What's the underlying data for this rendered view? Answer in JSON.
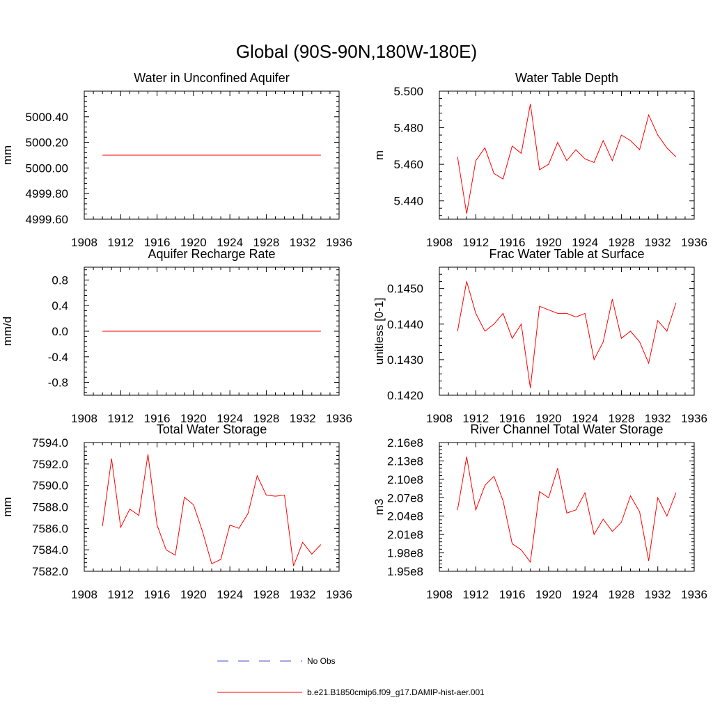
{
  "main_title": "Global (90S-90N,180W-180E)",
  "colors": {
    "series": "#ff0000",
    "obs": "#4b4bc8",
    "axis": "#000000"
  },
  "legend": [
    {
      "label": "No Obs",
      "style": "dashed",
      "color": "#4b4bc8"
    },
    {
      "label": "b.e21.B1850cmip6.f09_g17.DAMIP-hist-aer.001",
      "style": "solid",
      "color": "#ff0000"
    }
  ],
  "chart_data": [
    {
      "type": "line",
      "title": "Water in Unconfined Aquifer",
      "ylabel": "mm",
      "xlim": [
        1908,
        1936
      ],
      "ylim": [
        4999.6,
        5000.6
      ],
      "xticks": [
        1908,
        1912,
        1916,
        1920,
        1924,
        1928,
        1932,
        1936
      ],
      "yticks": [
        4999.6,
        4999.8,
        5000.0,
        5000.2,
        5000.4
      ],
      "ytick_labels": [
        "4999.60",
        "4999.80",
        "5000.00",
        "5000.20",
        "5000.40"
      ],
      "x": [
        1910,
        1911,
        1912,
        1913,
        1914,
        1915,
        1916,
        1917,
        1918,
        1919,
        1920,
        1921,
        1922,
        1923,
        1924,
        1925,
        1926,
        1927,
        1928,
        1929,
        1930,
        1931,
        1932,
        1933,
        1934
      ],
      "values": [
        5000.1,
        5000.1,
        5000.1,
        5000.1,
        5000.1,
        5000.1,
        5000.1,
        5000.1,
        5000.1,
        5000.1,
        5000.1,
        5000.1,
        5000.1,
        5000.1,
        5000.1,
        5000.1,
        5000.1,
        5000.1,
        5000.1,
        5000.1,
        5000.1,
        5000.1,
        5000.1,
        5000.1,
        5000.1
      ]
    },
    {
      "type": "line",
      "title": "Water Table Depth",
      "ylabel": "m",
      "xlim": [
        1908,
        1936
      ],
      "ylim": [
        5.43,
        5.5
      ],
      "xticks": [
        1908,
        1912,
        1916,
        1920,
        1924,
        1928,
        1932,
        1936
      ],
      "yticks": [
        5.44,
        5.46,
        5.48,
        5.5
      ],
      "ytick_labels": [
        "5.440",
        "5.460",
        "5.480",
        "5.500"
      ],
      "x": [
        1910,
        1911,
        1912,
        1913,
        1914,
        1915,
        1916,
        1917,
        1918,
        1919,
        1920,
        1921,
        1922,
        1923,
        1924,
        1925,
        1926,
        1927,
        1928,
        1929,
        1930,
        1931,
        1932,
        1933,
        1934
      ],
      "values": [
        5.464,
        5.433,
        5.462,
        5.469,
        5.455,
        5.452,
        5.47,
        5.466,
        5.493,
        5.457,
        5.46,
        5.472,
        5.462,
        5.468,
        5.463,
        5.461,
        5.473,
        5.462,
        5.476,
        5.473,
        5.468,
        5.487,
        5.476,
        5.469,
        5.464
      ]
    },
    {
      "type": "line",
      "title": "Aquifer Recharge Rate",
      "ylabel": "mm/d",
      "xlim": [
        1908,
        1936
      ],
      "ylim": [
        -1.0,
        1.0
      ],
      "xticks": [
        1908,
        1912,
        1916,
        1920,
        1924,
        1928,
        1932,
        1936
      ],
      "yticks": [
        -0.8,
        -0.4,
        0.0,
        0.4,
        0.8
      ],
      "ytick_labels": [
        "-0.8",
        "-0.4",
        "0.0",
        "0.4",
        "0.8"
      ],
      "x": [
        1910,
        1911,
        1912,
        1913,
        1914,
        1915,
        1916,
        1917,
        1918,
        1919,
        1920,
        1921,
        1922,
        1923,
        1924,
        1925,
        1926,
        1927,
        1928,
        1929,
        1930,
        1931,
        1932,
        1933,
        1934
      ],
      "values": [
        0,
        0,
        0,
        0,
        0,
        0,
        0,
        0,
        0,
        0,
        0,
        0,
        0,
        0,
        0,
        0,
        0,
        0,
        0,
        0,
        0,
        0,
        0,
        0,
        0
      ]
    },
    {
      "type": "line",
      "title": "Frac Water Table at Surface",
      "ylabel": "unitless [0-1]",
      "xlim": [
        1908,
        1936
      ],
      "ylim": [
        0.142,
        0.1456
      ],
      "xticks": [
        1908,
        1912,
        1916,
        1920,
        1924,
        1928,
        1932,
        1936
      ],
      "yticks": [
        0.142,
        0.143,
        0.144,
        0.145
      ],
      "ytick_labels": [
        "0.1420",
        "0.1430",
        "0.1440",
        "0.1450"
      ],
      "x": [
        1910,
        1911,
        1912,
        1913,
        1914,
        1915,
        1916,
        1917,
        1918,
        1919,
        1920,
        1921,
        1922,
        1923,
        1924,
        1925,
        1926,
        1927,
        1928,
        1929,
        1930,
        1931,
        1932,
        1933,
        1934
      ],
      "values": [
        0.1438,
        0.1452,
        0.1443,
        0.1438,
        0.144,
        0.1443,
        0.1436,
        0.144,
        0.1422,
        0.1445,
        0.1444,
        0.1443,
        0.1443,
        0.1442,
        0.1443,
        0.143,
        0.1435,
        0.1447,
        0.1436,
        0.1438,
        0.1435,
        0.1429,
        0.1441,
        0.1438,
        0.1446
      ]
    },
    {
      "type": "line",
      "title": "Total Water Storage",
      "ylabel": "mm",
      "xlim": [
        1908,
        1936
      ],
      "ylim": [
        7582.0,
        7594.0
      ],
      "xticks": [
        1908,
        1912,
        1916,
        1920,
        1924,
        1928,
        1932,
        1936
      ],
      "yticks": [
        7582,
        7584,
        7586,
        7588,
        7590,
        7592,
        7594
      ],
      "ytick_labels": [
        "7582.0",
        "7584.0",
        "7586.0",
        "7588.0",
        "7590.0",
        "7592.0",
        "7594.0"
      ],
      "x": [
        1910,
        1911,
        1912,
        1913,
        1914,
        1915,
        1916,
        1917,
        1918,
        1919,
        1920,
        1921,
        1922,
        1923,
        1924,
        1925,
        1926,
        1927,
        1928,
        1929,
        1930,
        1931,
        1932,
        1933,
        1934
      ],
      "values": [
        7586.2,
        7592.5,
        7586.1,
        7587.8,
        7587.2,
        7592.9,
        7586.3,
        7584.0,
        7583.5,
        7588.9,
        7588.2,
        7585.7,
        7582.7,
        7583.1,
        7586.3,
        7586.0,
        7587.4,
        7590.9,
        7589.1,
        7589.0,
        7589.1,
        7582.5,
        7584.7,
        7583.6,
        7584.5
      ]
    },
    {
      "type": "line",
      "title": "River Channel Total Water Storage",
      "ylabel": "m3",
      "xlim": [
        1908,
        1936
      ],
      "ylim": [
        195000000,
        216000000
      ],
      "xticks": [
        1908,
        1912,
        1916,
        1920,
        1924,
        1928,
        1932,
        1936
      ],
      "yticks": [
        195000000,
        198000000,
        201000000,
        204000000,
        207000000,
        210000000,
        213000000,
        216000000
      ],
      "ytick_labels": [
        "1.95e8",
        "1.98e8",
        "2.01e8",
        "2.04e8",
        "2.07e8",
        "2.10e8",
        "2.13e8",
        "2.16e8"
      ],
      "x": [
        1910,
        1911,
        1912,
        1913,
        1914,
        1915,
        1916,
        1917,
        1918,
        1919,
        1920,
        1921,
        1922,
        1923,
        1924,
        1925,
        1926,
        1927,
        1928,
        1929,
        1930,
        1931,
        1932,
        1933,
        1934
      ],
      "values": [
        205000000,
        213700000,
        205000000,
        209000000,
        210500000,
        206500000,
        199500000,
        198500000,
        196500000,
        208000000,
        207000000,
        211800000,
        204500000,
        205000000,
        207800000,
        201000000,
        203500000,
        201500000,
        203000000,
        207300000,
        204700000,
        196700000,
        207000000,
        204000000,
        207800000
      ]
    }
  ]
}
